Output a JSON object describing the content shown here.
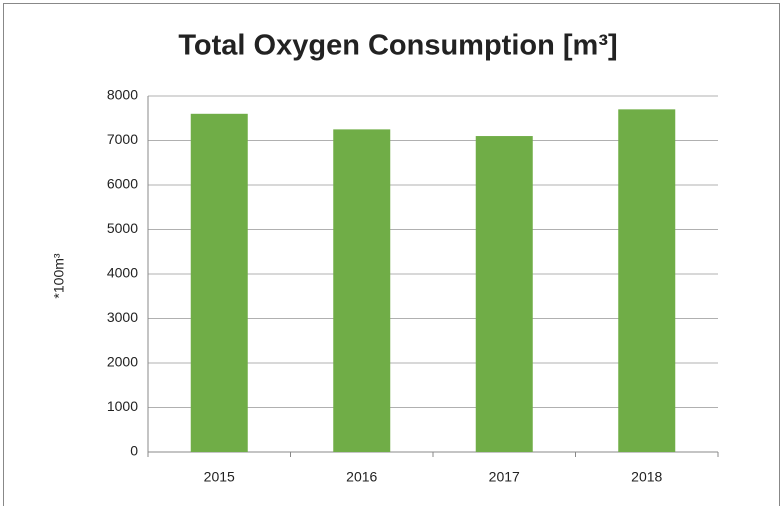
{
  "chart_data": {
    "type": "bar",
    "title": "Total Oxygen Consumption [m³]",
    "y_label": "*100m³",
    "categories": [
      "2015",
      "2016",
      "2017",
      "2018"
    ],
    "values": [
      7600,
      7250,
      7100,
      7700
    ],
    "color": "#70ad47",
    "ylim": [
      0,
      8000
    ],
    "yticks": [
      0,
      1000,
      2000,
      3000,
      4000,
      5000,
      6000,
      7000,
      8000
    ],
    "grid": true
  }
}
